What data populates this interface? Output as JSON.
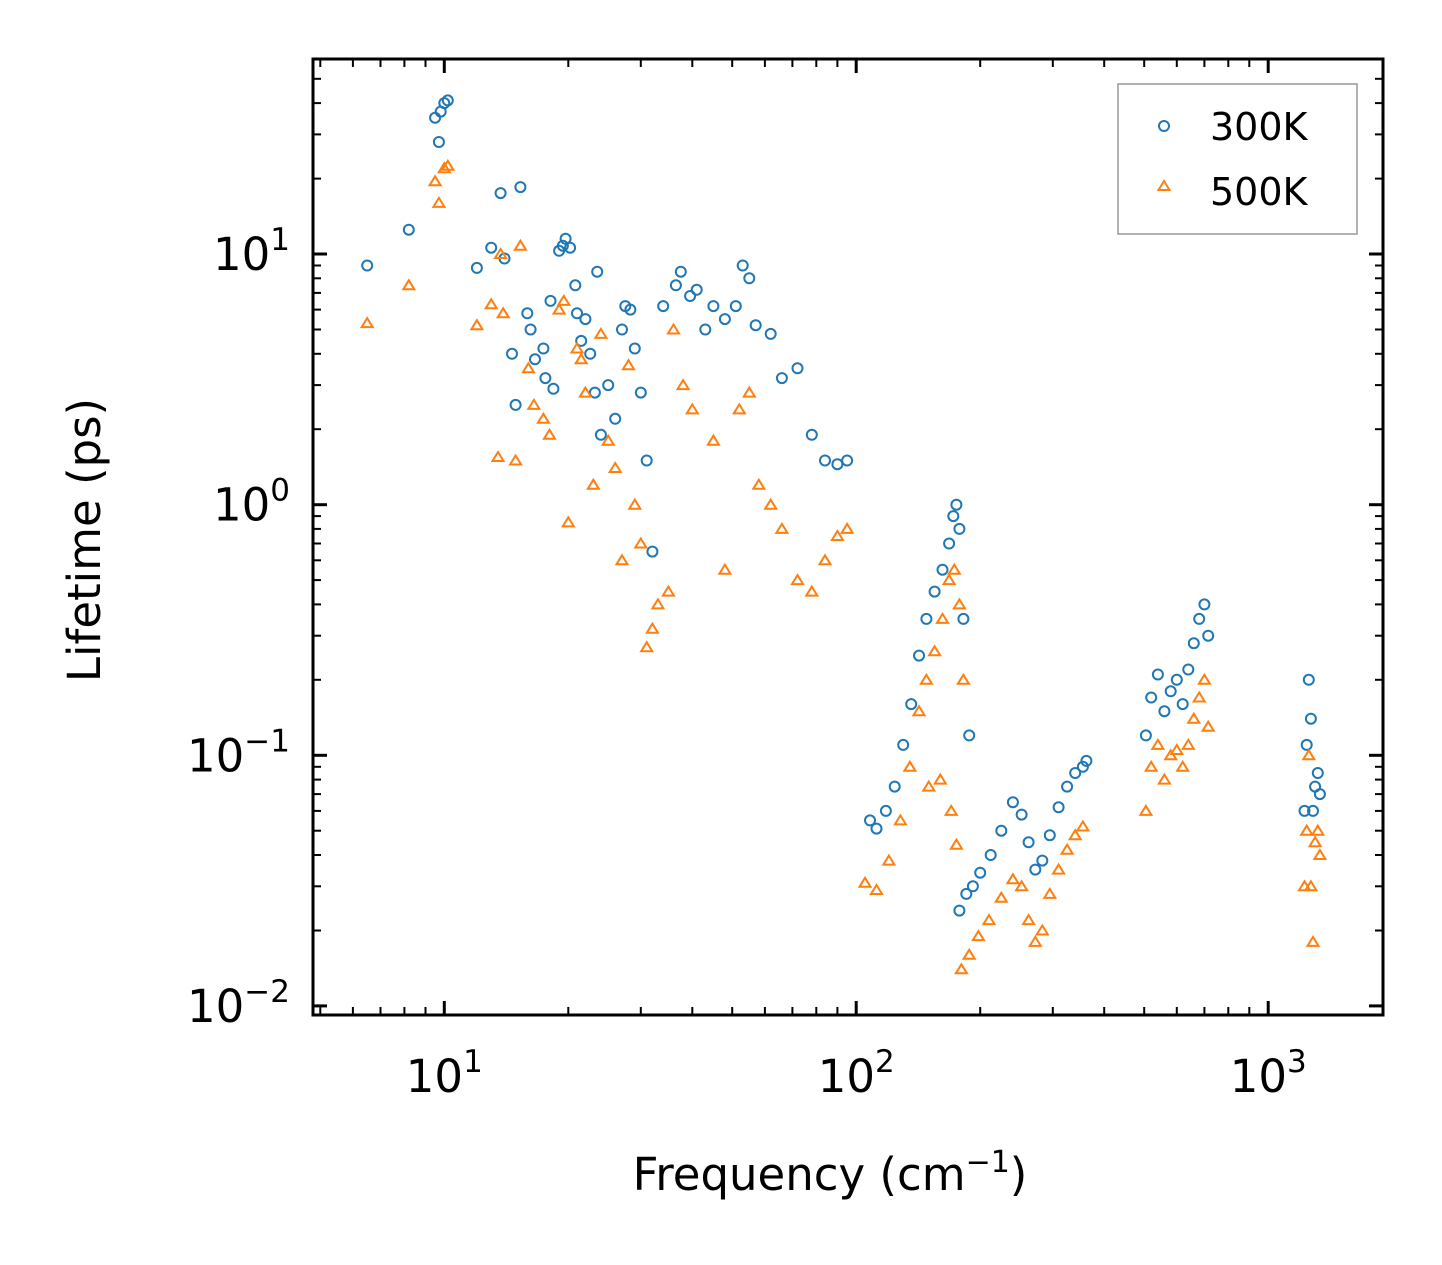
{
  "chart_data": {
    "type": "scatter",
    "xscale": "log",
    "yscale": "log",
    "xlim": [
      4.8,
      1900
    ],
    "ylim": [
      0.0092,
      60
    ],
    "xlabel": "Frequency (cm",
    "xlabel_sup": "−1",
    "xlabel_end": ")",
    "ylabel": "Lifetime (ps)",
    "x_ticks": [
      {
        "value": 10,
        "base": "10",
        "exp": "1"
      },
      {
        "value": 100,
        "base": "10",
        "exp": "2"
      },
      {
        "value": 1000,
        "base": "10",
        "exp": "3"
      }
    ],
    "y_ticks": [
      {
        "value": 0.01,
        "base": "10",
        "exp": "−2"
      },
      {
        "value": 0.1,
        "base": "10",
        "exp": "−1"
      },
      {
        "value": 1,
        "base": "10",
        "exp": "0"
      },
      {
        "value": 10,
        "base": "10",
        "exp": "1"
      }
    ],
    "legend_position": "top-right",
    "series": [
      {
        "name": "300K",
        "marker": "circle",
        "color": "#1f77b4",
        "points": [
          [
            6.5,
            9.0
          ],
          [
            8.2,
            12.5
          ],
          [
            9.5,
            35.0
          ],
          [
            9.7,
            28.0
          ],
          [
            9.8,
            37.0
          ],
          [
            10.0,
            40.0
          ],
          [
            10.2,
            41.0
          ],
          [
            12.0,
            8.8
          ],
          [
            13.0,
            10.6
          ],
          [
            13.7,
            17.5
          ],
          [
            14.0,
            9.6
          ],
          [
            14.6,
            4.0
          ],
          [
            14.9,
            2.5
          ],
          [
            15.3,
            18.5
          ],
          [
            15.9,
            5.8
          ],
          [
            16.2,
            5.0
          ],
          [
            16.6,
            3.8
          ],
          [
            17.4,
            4.2
          ],
          [
            17.6,
            3.2
          ],
          [
            18.1,
            6.5
          ],
          [
            18.4,
            2.9
          ],
          [
            19.0,
            10.3
          ],
          [
            19.4,
            10.8
          ],
          [
            19.7,
            11.5
          ],
          [
            20.2,
            10.6
          ],
          [
            20.8,
            7.5
          ],
          [
            21.0,
            5.8
          ],
          [
            21.5,
            4.5
          ],
          [
            22.0,
            5.5
          ],
          [
            22.6,
            4.0
          ],
          [
            23.2,
            2.8
          ],
          [
            23.5,
            8.5
          ],
          [
            24.0,
            1.9
          ],
          [
            25.0,
            3.0
          ],
          [
            26.0,
            2.2
          ],
          [
            27.0,
            5.0
          ],
          [
            27.5,
            6.2
          ],
          [
            28.3,
            6.0
          ],
          [
            29.0,
            4.2
          ],
          [
            30.0,
            2.8
          ],
          [
            31.0,
            1.5
          ],
          [
            32.0,
            0.65
          ],
          [
            34.0,
            6.2
          ],
          [
            36.5,
            7.5
          ],
          [
            37.5,
            8.5
          ],
          [
            39.5,
            6.8
          ],
          [
            41.0,
            7.2
          ],
          [
            43.0,
            5.0
          ],
          [
            45.0,
            6.2
          ],
          [
            48.0,
            5.5
          ],
          [
            51.0,
            6.2
          ],
          [
            53.0,
            9.0
          ],
          [
            55.0,
            8.0
          ],
          [
            57.0,
            5.2
          ],
          [
            62.0,
            4.8
          ],
          [
            66.0,
            3.2
          ],
          [
            72.0,
            3.5
          ],
          [
            78.0,
            1.9
          ],
          [
            84.0,
            1.5
          ],
          [
            90.0,
            1.45
          ],
          [
            95.0,
            1.5
          ],
          [
            108.0,
            0.055
          ],
          [
            112.0,
            0.051
          ],
          [
            118.0,
            0.06
          ],
          [
            124.0,
            0.075
          ],
          [
            130.0,
            0.11
          ],
          [
            136.0,
            0.16
          ],
          [
            142.0,
            0.25
          ],
          [
            148.0,
            0.35
          ],
          [
            155.0,
            0.45
          ],
          [
            162.0,
            0.55
          ],
          [
            168.0,
            0.7
          ],
          [
            172.0,
            0.9
          ],
          [
            175.0,
            1.0
          ],
          [
            178.0,
            0.8
          ],
          [
            182.0,
            0.35
          ],
          [
            188.0,
            0.12
          ],
          [
            178.0,
            0.024
          ],
          [
            185.0,
            0.028
          ],
          [
            192.0,
            0.03
          ],
          [
            200.0,
            0.034
          ],
          [
            212.0,
            0.04
          ],
          [
            225.0,
            0.05
          ],
          [
            240.0,
            0.065
          ],
          [
            252.0,
            0.058
          ],
          [
            262.0,
            0.045
          ],
          [
            272.0,
            0.035
          ],
          [
            283.0,
            0.038
          ],
          [
            295.0,
            0.048
          ],
          [
            310.0,
            0.062
          ],
          [
            325.0,
            0.075
          ],
          [
            340.0,
            0.085
          ],
          [
            355.0,
            0.09
          ],
          [
            362.0,
            0.095
          ],
          [
            505.0,
            0.12
          ],
          [
            520.0,
            0.17
          ],
          [
            540.0,
            0.21
          ],
          [
            560.0,
            0.15
          ],
          [
            580.0,
            0.18
          ],
          [
            600.0,
            0.2
          ],
          [
            620.0,
            0.16
          ],
          [
            640.0,
            0.22
          ],
          [
            660.0,
            0.28
          ],
          [
            680.0,
            0.35
          ],
          [
            700.0,
            0.4
          ],
          [
            715.0,
            0.3
          ],
          [
            1225.0,
            0.06
          ],
          [
            1240.0,
            0.11
          ],
          [
            1255.0,
            0.2
          ],
          [
            1270.0,
            0.14
          ],
          [
            1285.0,
            0.06
          ],
          [
            1300.0,
            0.075
          ],
          [
            1320.0,
            0.085
          ],
          [
            1335.0,
            0.07
          ]
        ]
      },
      {
        "name": "500K",
        "marker": "triangle",
        "color": "#ff7f0e",
        "points": [
          [
            6.5,
            5.3
          ],
          [
            8.2,
            7.5
          ],
          [
            9.5,
            19.5
          ],
          [
            9.7,
            16.0
          ],
          [
            10.0,
            22.0
          ],
          [
            10.2,
            22.5
          ],
          [
            12.0,
            5.2
          ],
          [
            13.0,
            6.3
          ],
          [
            13.7,
            10.0
          ],
          [
            13.9,
            5.8
          ],
          [
            13.5,
            1.55
          ],
          [
            14.9,
            1.5
          ],
          [
            15.3,
            10.8
          ],
          [
            16.0,
            3.5
          ],
          [
            16.5,
            2.5
          ],
          [
            17.4,
            2.2
          ],
          [
            18.0,
            1.9
          ],
          [
            19.0,
            6.0
          ],
          [
            19.5,
            6.5
          ],
          [
            20.0,
            0.85
          ],
          [
            21.0,
            4.2
          ],
          [
            21.5,
            3.8
          ],
          [
            22.0,
            2.8
          ],
          [
            23.0,
            1.2
          ],
          [
            24.0,
            4.8
          ],
          [
            25.0,
            1.8
          ],
          [
            26.0,
            1.4
          ],
          [
            27.0,
            0.6
          ],
          [
            28.0,
            3.6
          ],
          [
            29.0,
            1.0
          ],
          [
            30.0,
            0.7
          ],
          [
            31.0,
            0.27
          ],
          [
            32.0,
            0.32
          ],
          [
            33.0,
            0.4
          ],
          [
            35.0,
            0.45
          ],
          [
            36.0,
            5.0
          ],
          [
            38.0,
            3.0
          ],
          [
            40.0,
            2.4
          ],
          [
            45.0,
            1.8
          ],
          [
            48.0,
            0.55
          ],
          [
            52.0,
            2.4
          ],
          [
            55.0,
            2.8
          ],
          [
            58.0,
            1.2
          ],
          [
            62.0,
            1.0
          ],
          [
            66.0,
            0.8
          ],
          [
            72.0,
            0.5
          ],
          [
            78.0,
            0.45
          ],
          [
            84.0,
            0.6
          ],
          [
            90.0,
            0.75
          ],
          [
            95.0,
            0.8
          ],
          [
            105.0,
            0.031
          ],
          [
            112.0,
            0.029
          ],
          [
            120.0,
            0.038
          ],
          [
            128.0,
            0.055
          ],
          [
            135.0,
            0.09
          ],
          [
            142.0,
            0.15
          ],
          [
            148.0,
            0.2
          ],
          [
            155.0,
            0.26
          ],
          [
            162.0,
            0.35
          ],
          [
            168.0,
            0.5
          ],
          [
            173.0,
            0.55
          ],
          [
            178.0,
            0.4
          ],
          [
            182.0,
            0.2
          ],
          [
            150.0,
            0.075
          ],
          [
            160.0,
            0.08
          ],
          [
            170.0,
            0.06
          ],
          [
            175.0,
            0.044
          ],
          [
            180.0,
            0.014
          ],
          [
            188.0,
            0.016
          ],
          [
            198.0,
            0.019
          ],
          [
            210.0,
            0.022
          ],
          [
            225.0,
            0.027
          ],
          [
            240.0,
            0.032
          ],
          [
            252.0,
            0.03
          ],
          [
            262.0,
            0.022
          ],
          [
            272.0,
            0.018
          ],
          [
            283.0,
            0.02
          ],
          [
            295.0,
            0.028
          ],
          [
            310.0,
            0.035
          ],
          [
            325.0,
            0.042
          ],
          [
            340.0,
            0.048
          ],
          [
            355.0,
            0.052
          ],
          [
            505.0,
            0.06
          ],
          [
            520.0,
            0.09
          ],
          [
            540.0,
            0.11
          ],
          [
            560.0,
            0.08
          ],
          [
            580.0,
            0.1
          ],
          [
            600.0,
            0.105
          ],
          [
            620.0,
            0.09
          ],
          [
            640.0,
            0.11
          ],
          [
            660.0,
            0.14
          ],
          [
            680.0,
            0.17
          ],
          [
            700.0,
            0.2
          ],
          [
            715.0,
            0.13
          ],
          [
            1225.0,
            0.03
          ],
          [
            1240.0,
            0.05
          ],
          [
            1255.0,
            0.1
          ],
          [
            1270.0,
            0.03
          ],
          [
            1285.0,
            0.018
          ],
          [
            1300.0,
            0.045
          ],
          [
            1320.0,
            0.05
          ],
          [
            1335.0,
            0.04
          ]
        ]
      }
    ]
  }
}
